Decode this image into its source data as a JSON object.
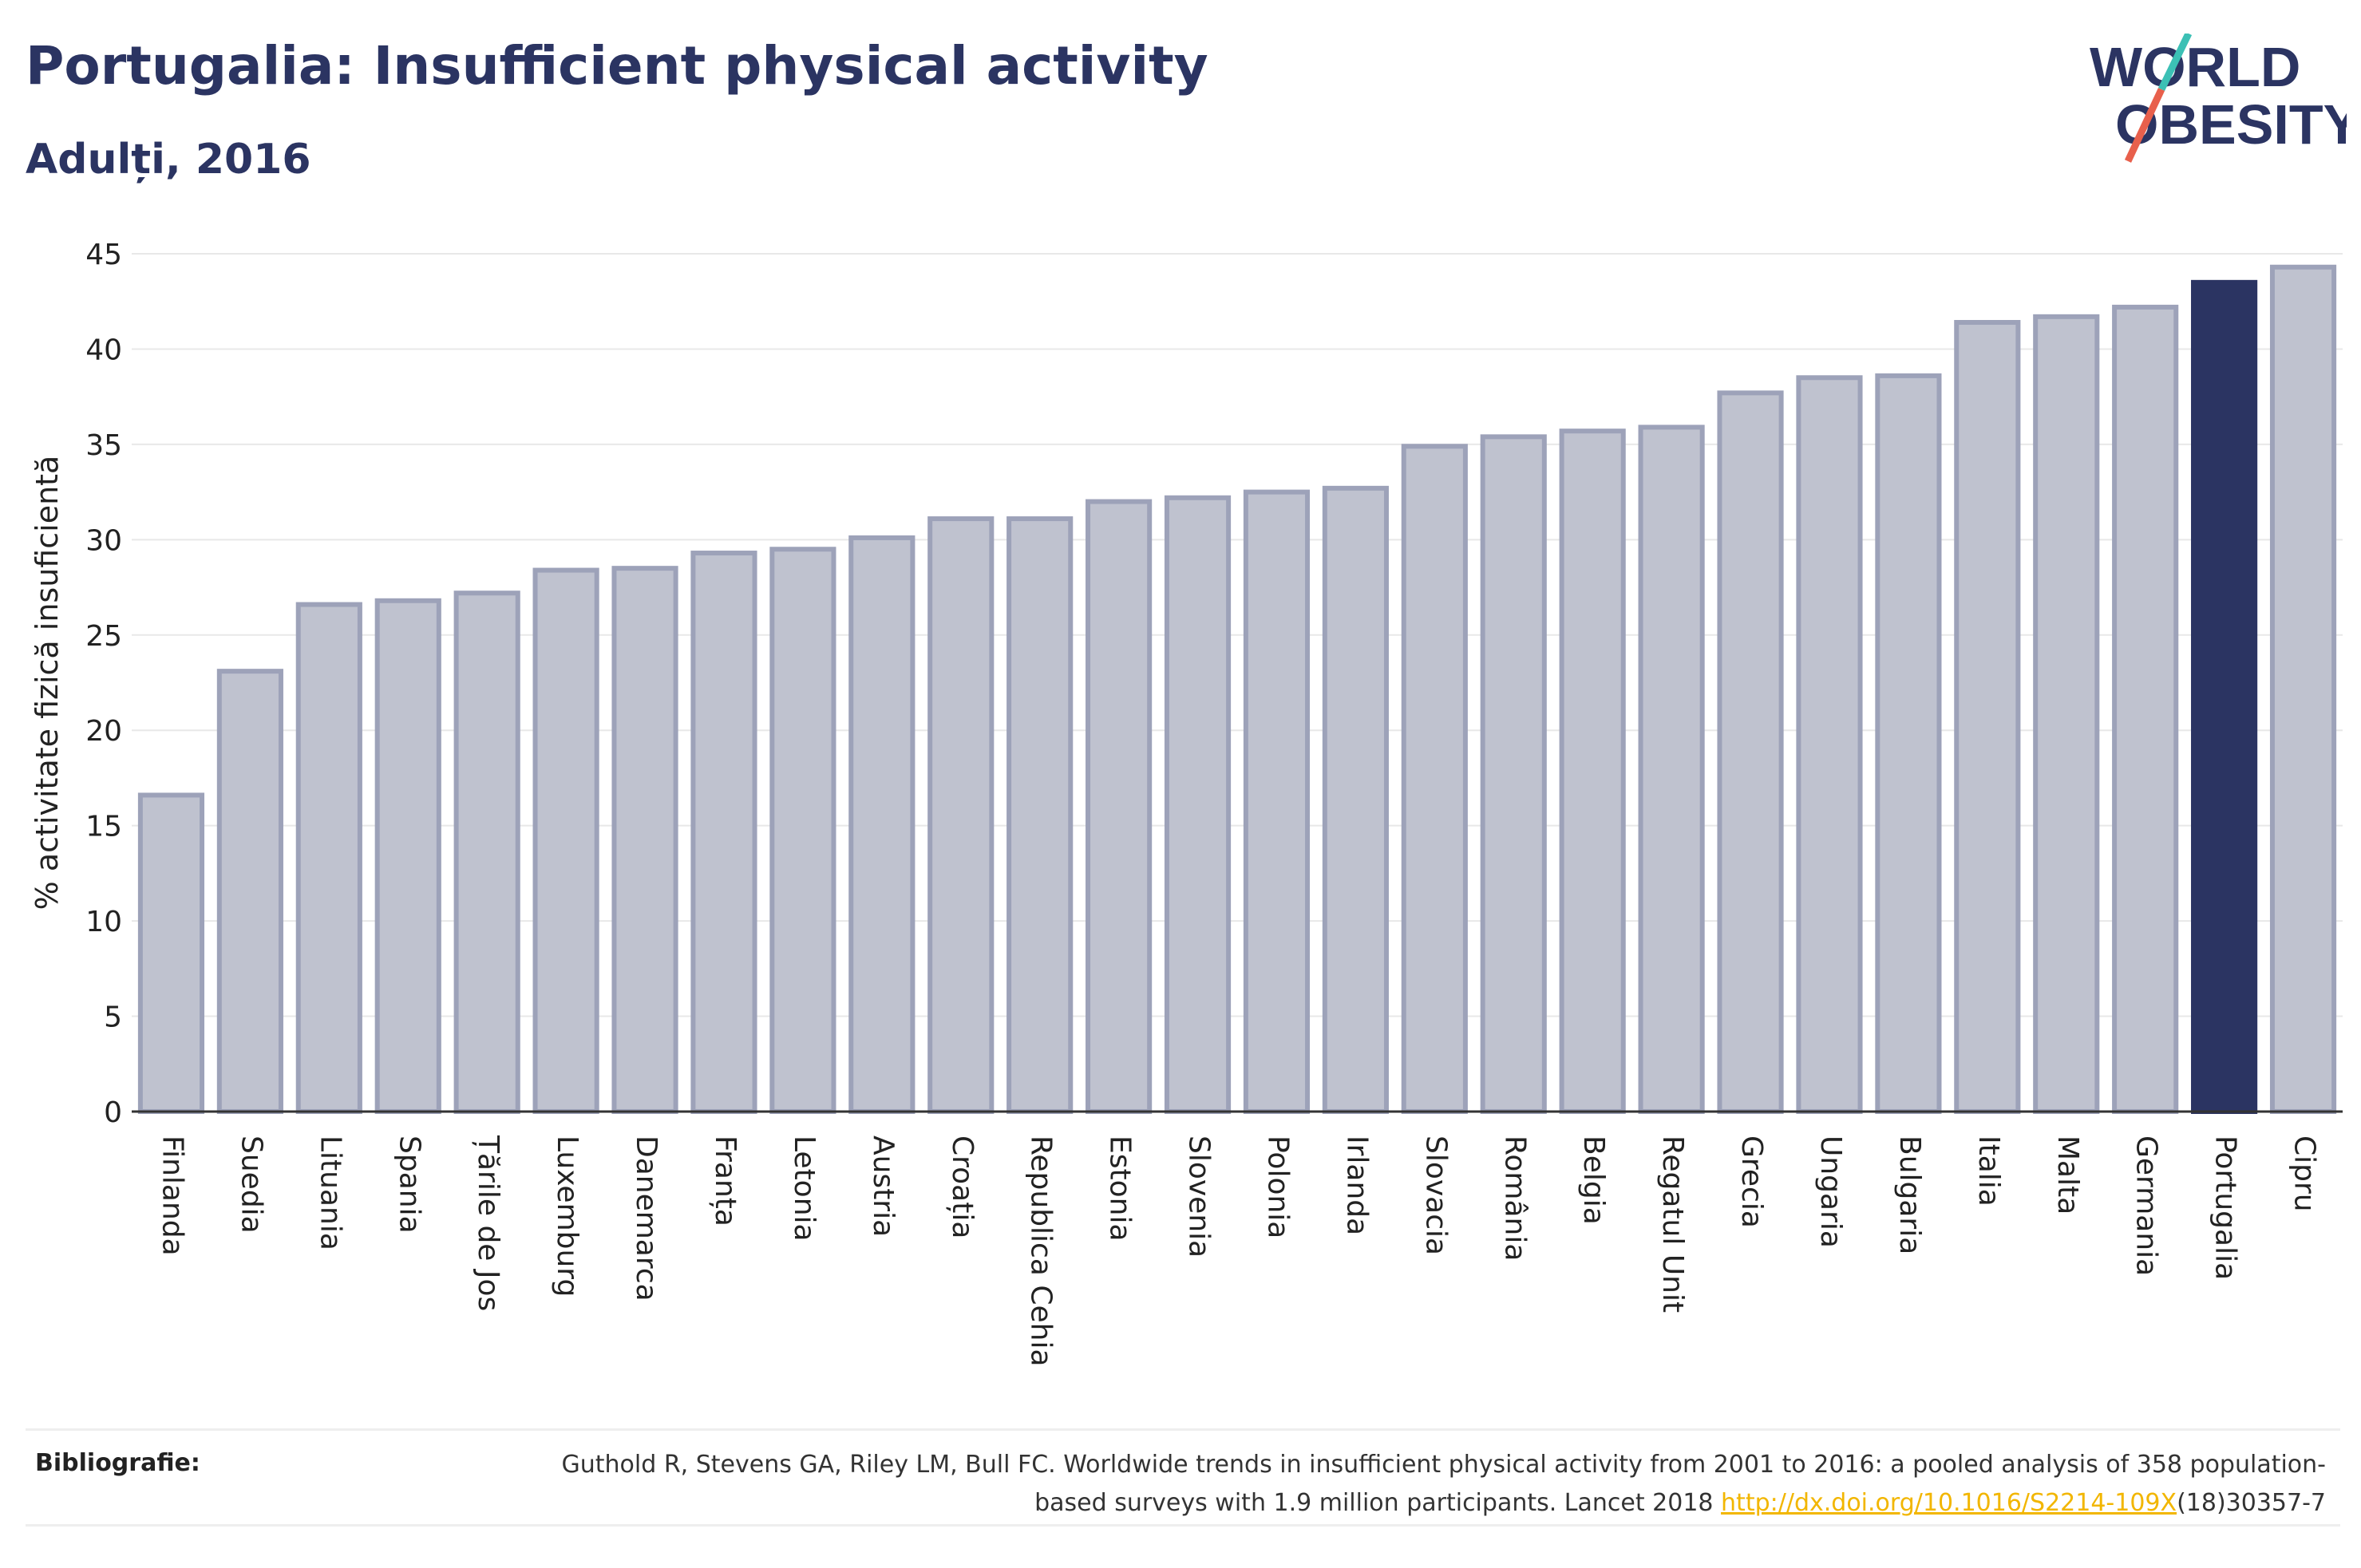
{
  "header": {
    "title": "Portugalia: Insufficient physical activity",
    "subtitle": "Adulți, 2016"
  },
  "logo": {
    "line1": "WORLD",
    "line2": "OBESITY",
    "colors": {
      "text": "#2b3462",
      "slash_teal": "#3cc0b5",
      "slash_red": "#e8604c"
    }
  },
  "chart_data": {
    "type": "bar",
    "ylabel": "% activitate fizică insuficientă",
    "xlabel": "",
    "ylim": [
      0,
      45
    ],
    "yticks": [
      0,
      5,
      10,
      15,
      20,
      25,
      30,
      35,
      40,
      45
    ],
    "grid": true,
    "highlight": "Portugalia",
    "colors": {
      "bar": "#bfc2cf",
      "bar_border": "#9da2b9",
      "highlight": "#2b3462",
      "grid": "#e8e8e8",
      "axis": "#333333"
    },
    "categories": [
      "Finlanda",
      "Suedia",
      "Lituania",
      "Spania",
      "Țările de Jos",
      "Luxemburg",
      "Danemarca",
      "Franța",
      "Letonia",
      "Austria",
      "Croația",
      "Republica Cehia",
      "Estonia",
      "Slovenia",
      "Polonia",
      "Irlanda",
      "Slovacia",
      "România",
      "Belgia",
      "Regatul Unit",
      "Grecia",
      "Ungaria",
      "Bulgaria",
      "Italia",
      "Malta",
      "Germania",
      "Portugalia",
      "Cipru"
    ],
    "values": [
      16.6,
      23.1,
      26.6,
      26.8,
      27.2,
      28.4,
      28.5,
      29.3,
      29.5,
      30.1,
      31.1,
      31.1,
      32.0,
      32.2,
      32.5,
      32.7,
      34.9,
      35.4,
      35.7,
      35.9,
      37.7,
      38.5,
      38.6,
      41.4,
      41.7,
      42.2,
      43.5,
      44.3
    ]
  },
  "references": {
    "label": "Bibliografie:",
    "text_before": "Guthold R, Stevens GA, Riley LM, Bull FC. Worldwide trends in insufficient physical activity from 2001 to 2016: a pooled analysis of 358 population-based surveys with 1.9 million participants. Lancet 2018 ",
    "link": "http://dx.doi.org/10.1016/S2214-109X",
    "text_after": "(18)30357-7"
  }
}
